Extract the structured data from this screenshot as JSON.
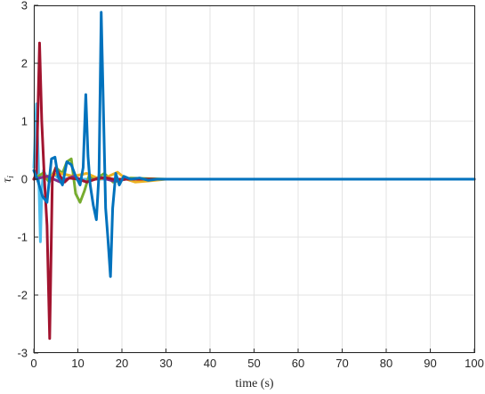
{
  "chart_data": {
    "type": "line",
    "title": "",
    "xlabel": "time (s)",
    "ylabel": "τ_i",
    "ylabel_text": "τ",
    "ylabel_sub": "i",
    "xlim": [
      0,
      100
    ],
    "ylim": [
      -3,
      3
    ],
    "xticks": [
      "0",
      "10",
      "20",
      "30",
      "40",
      "50",
      "60",
      "70",
      "80",
      "90",
      "100"
    ],
    "yticks": [
      "3",
      "2",
      "1",
      "0",
      "-1",
      "-2",
      "-3"
    ],
    "grid": true,
    "colors": {
      "series1": "#4DBEEE",
      "series2": "#77AC30",
      "series3": "#EDB120",
      "series4": "#7E2F8E",
      "series5": "#A2142F",
      "series6": "#0072BD"
    },
    "series": [
      {
        "x": [
          0,
          0.6,
          1.0,
          1.5,
          1.8,
          2.2,
          2.8,
          3.5,
          4.5,
          6,
          8,
          10,
          15,
          100
        ],
        "y": [
          0.2,
          1.3,
          0.4,
          -1.08,
          -0.2,
          0.15,
          0.05,
          -0.05,
          0.1,
          -0.02,
          0.02,
          0.0,
          0.0,
          0.0
        ]
      },
      {
        "x": [
          0,
          2,
          3.5,
          5,
          6.5,
          7.5,
          8.5,
          9.5,
          10.5,
          11.5,
          12.5,
          14,
          16,
          18,
          22,
          30,
          100
        ],
        "y": [
          0.0,
          0.1,
          -0.05,
          0.2,
          0.1,
          0.3,
          0.35,
          -0.25,
          -0.4,
          -0.2,
          0.05,
          0.0,
          0.1,
          -0.05,
          0.02,
          0.0,
          0.0
        ]
      },
      {
        "x": [
          0,
          3,
          6,
          9,
          12,
          15,
          17,
          19,
          21,
          23,
          26,
          30,
          100
        ],
        "y": [
          0.0,
          0.05,
          0.1,
          0.05,
          0.1,
          0.0,
          0.05,
          0.12,
          0.0,
          -0.05,
          -0.03,
          0.0,
          0.0
        ]
      },
      {
        "x": [
          0,
          3,
          6,
          9,
          12,
          15,
          18,
          21,
          25,
          100
        ],
        "y": [
          0.0,
          0.05,
          -0.05,
          0.05,
          -0.05,
          0.03,
          -0.03,
          0.0,
          0.0,
          0.0
        ]
      },
      {
        "x": [
          0,
          0.6,
          1.3,
          1.8,
          2.4,
          3.0,
          3.6,
          4.2,
          5.0,
          6.0,
          7.0,
          8.0,
          10,
          12,
          14,
          16,
          18,
          20,
          100
        ],
        "y": [
          0.0,
          0.1,
          2.35,
          1.0,
          0.0,
          -0.8,
          -2.75,
          0.0,
          0.2,
          0.05,
          -0.05,
          0.02,
          0.0,
          -0.05,
          0.0,
          0.03,
          0.0,
          0.0,
          0.0
        ]
      },
      {
        "x": [
          0,
          0.8,
          2,
          3,
          4,
          4.8,
          5.5,
          6.5,
          7.5,
          8.5,
          9.5,
          10.5,
          11.2,
          11.8,
          12.3,
          12.8,
          13.5,
          14.2,
          14.8,
          15.3,
          15.8,
          16.3,
          16.8,
          17.4,
          17.9,
          18.6,
          19.4,
          20.4,
          22,
          24,
          26,
          28,
          100
        ],
        "y": [
          0.15,
          0.0,
          -0.3,
          -0.4,
          0.35,
          0.38,
          0.05,
          -0.1,
          0.3,
          0.25,
          0.05,
          -0.1,
          0.2,
          1.46,
          0.4,
          -0.1,
          -0.45,
          -0.7,
          0.1,
          2.88,
          1.2,
          -0.5,
          -1.0,
          -1.68,
          -0.5,
          0.1,
          -0.1,
          0.05,
          0.0,
          0.02,
          -0.02,
          0.0,
          0.0
        ]
      }
    ]
  }
}
